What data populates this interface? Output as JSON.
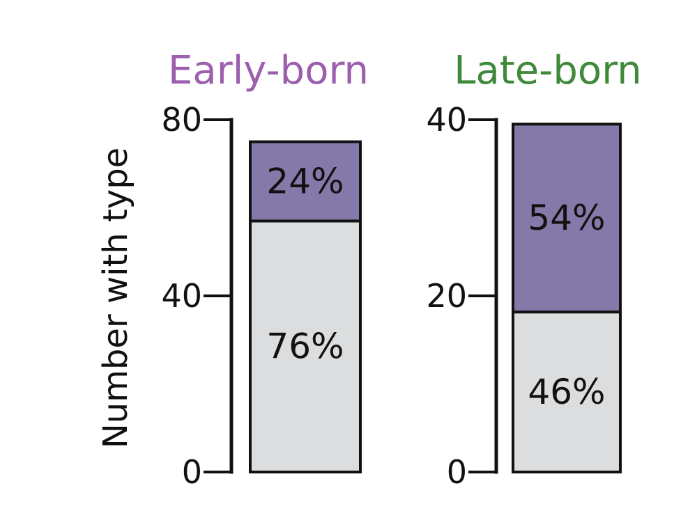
{
  "chart_data": {
    "type": "bar",
    "stacked": true,
    "ylabel": "Number with type",
    "colors": {
      "top_segment": "#8479a8",
      "bottom_segment": "#dcdddf",
      "outline": "#111111"
    },
    "panels": [
      {
        "title": "Early-born",
        "title_color": "#9b5fae",
        "ylim": [
          0,
          80
        ],
        "ticks": [
          0,
          40,
          80
        ],
        "tick_labels": [
          "0",
          "40",
          "80"
        ],
        "total": 75,
        "segments": [
          {
            "position": "bottom",
            "percent": 76,
            "label": "76%"
          },
          {
            "position": "top",
            "percent": 24,
            "label": "24%"
          }
        ]
      },
      {
        "title": "Late-born",
        "title_color": "#3f8a3a",
        "ylim": [
          0,
          40
        ],
        "ticks": [
          0,
          20,
          40
        ],
        "tick_labels": [
          "0",
          "20",
          "40"
        ],
        "total": 39.5,
        "segments": [
          {
            "position": "bottom",
            "percent": 46,
            "label": "46%"
          },
          {
            "position": "top",
            "percent": 54,
            "label": "54%"
          }
        ]
      }
    ]
  }
}
